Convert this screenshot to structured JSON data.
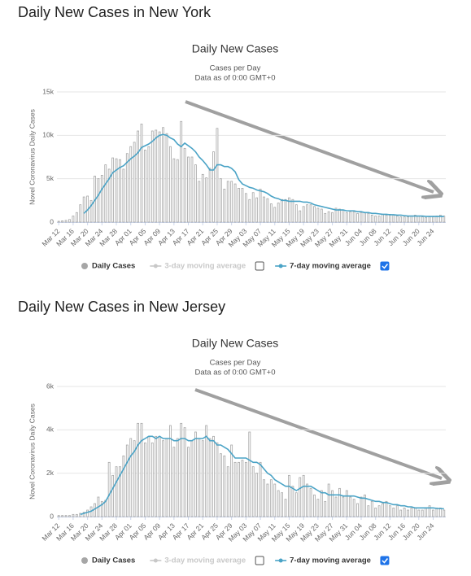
{
  "chart_data": [
    {
      "type": "bar",
      "heading": "Daily New Cases in New York",
      "title": "Daily New Cases",
      "subtitle": "Cases per Day",
      "note": "Data as of 0:00 GMT+0",
      "y_label": "Novel Coronavirus Daily Cases",
      "categories": [
        "Mar 12",
        null,
        null,
        null,
        "Mar 16",
        null,
        null,
        null,
        "Mar 20",
        null,
        null,
        null,
        "Mar 24",
        null,
        null,
        null,
        "Mar 28",
        null,
        null,
        null,
        "Apr 01",
        null,
        null,
        null,
        "Apr 05",
        null,
        null,
        null,
        "Apr 09",
        null,
        null,
        null,
        "Apr 13",
        null,
        null,
        null,
        "Apr 17",
        null,
        null,
        null,
        "Apr 21",
        null,
        null,
        null,
        "Apr 25",
        null,
        null,
        null,
        "Apr 29",
        null,
        null,
        null,
        "May 03",
        null,
        null,
        null,
        "May 07",
        null,
        null,
        null,
        "May 11",
        null,
        null,
        null,
        "May 15",
        null,
        null,
        null,
        "May 19",
        null,
        null,
        null,
        "May 23",
        null,
        null,
        null,
        "May 27",
        null,
        null,
        null,
        "May 31",
        null,
        null,
        null,
        "Jun 04",
        null,
        null,
        null,
        "Jun 08",
        null,
        null,
        null,
        "Jun 12",
        null,
        null,
        null,
        "Jun 16",
        null,
        null,
        null,
        "Jun 20",
        null,
        null,
        null,
        "Jun 24",
        null,
        null,
        null
      ],
      "series": [
        {
          "name": "Daily Cases",
          "color": "#a6a6a6",
          "kind": "bar",
          "values": [
            100,
            150,
            200,
            300,
            700,
            1100,
            2000,
            2900,
            3000,
            2500,
            5300,
            5000,
            5400,
            6600,
            6100,
            7400,
            7300,
            7200,
            6100,
            7900,
            8700,
            9200,
            10500,
            11300,
            8300,
            8700,
            10500,
            10600,
            10400,
            10900,
            10200,
            8700,
            7300,
            7200,
            11600,
            8500,
            7500,
            7500,
            6600,
            4700,
            5500,
            5100,
            6200,
            8100,
            10800,
            5000,
            3800,
            4700,
            4700,
            4400,
            3900,
            3900,
            3300,
            2600,
            3400,
            2800,
            3800,
            2900,
            2700,
            2100,
            1700,
            2200,
            2600,
            2600,
            2800,
            2600,
            2000,
            1300,
            1800,
            2000,
            2000,
            1800,
            1600,
            1500,
            1000,
            1200,
            1100,
            1600,
            1500,
            1400,
            1100,
            1200,
            1200,
            1000,
            1100,
            1100,
            1000,
            800,
            700,
            700,
            900,
            800,
            900,
            800,
            700,
            600,
            600,
            600,
            700,
            800,
            700,
            600,
            500,
            600,
            600,
            700,
            800,
            700
          ]
        },
        {
          "name": "3-day moving average",
          "color": "#c8c8c8",
          "kind": "line",
          "visible": false
        },
        {
          "name": "7-day moving average",
          "color": "#4aa3c6",
          "kind": "line",
          "visible": true,
          "values": [
            null,
            null,
            null,
            null,
            null,
            null,
            null,
            1000,
            1400,
            1900,
            2500,
            3100,
            3800,
            4400,
            5000,
            5700,
            6000,
            6300,
            6500,
            6900,
            7300,
            7600,
            8000,
            8600,
            8800,
            9000,
            9300,
            9700,
            10000,
            10100,
            10000,
            9700,
            9500,
            9000,
            8700,
            9100,
            8800,
            8500,
            8100,
            7500,
            7100,
            6600,
            6000,
            6000,
            6600,
            6600,
            6400,
            6400,
            6200,
            5800,
            4900,
            4400,
            4200,
            4000,
            3900,
            3700,
            3600,
            3500,
            3300,
            3000,
            2800,
            2700,
            2500,
            2500,
            2400,
            2400,
            2400,
            2400,
            2300,
            2300,
            2200,
            2000,
            1900,
            1800,
            1700,
            1600,
            1500,
            1400,
            1400,
            1400,
            1300,
            1300,
            1300,
            1200,
            1200,
            1100,
            1100,
            1000,
            1000,
            950,
            900,
            900,
            850,
            850,
            800,
            800,
            750,
            700,
            700,
            700,
            700,
            700,
            650,
            650,
            650,
            650,
            650,
            650
          ]
        }
      ],
      "ylim": [
        0,
        15000
      ],
      "yticks": [
        0,
        {
          "value": 5000,
          "label": "5k"
        },
        {
          "value": 10000,
          "label": "10k"
        },
        {
          "value": 15000,
          "label": "15k"
        }
      ],
      "grid": true
    },
    {
      "type": "bar",
      "heading": "Daily New Cases in New Jersey",
      "title": "Daily New Cases",
      "subtitle": "Cases per Day",
      "note": "Data as of 0:00 GMT+0",
      "y_label": "Novel Coronavirus Daily Cases",
      "categories": [
        "Mar 12",
        null,
        null,
        null,
        "Mar 16",
        null,
        null,
        null,
        "Mar 20",
        null,
        null,
        null,
        "Mar 24",
        null,
        null,
        null,
        "Mar 28",
        null,
        null,
        null,
        "Apr 01",
        null,
        null,
        null,
        "Apr 05",
        null,
        null,
        null,
        "Apr 09",
        null,
        null,
        null,
        "Apr 13",
        null,
        null,
        null,
        "Apr 17",
        null,
        null,
        null,
        "Apr 21",
        null,
        null,
        null,
        "Apr 25",
        null,
        null,
        null,
        "Apr 29",
        null,
        null,
        null,
        "May 03",
        null,
        null,
        null,
        "May 07",
        null,
        null,
        null,
        "May 11",
        null,
        null,
        null,
        "May 15",
        null,
        null,
        null,
        "May 19",
        null,
        null,
        null,
        "May 23",
        null,
        null,
        null,
        "May 27",
        null,
        null,
        null,
        "May 31",
        null,
        null,
        null,
        "Jun 04",
        null,
        null,
        null,
        "Jun 08",
        null,
        null,
        null,
        "Jun 12",
        null,
        null,
        null,
        "Jun 16",
        null,
        null,
        null,
        "Jun 20",
        null,
        null,
        null,
        "Jun 24",
        null,
        null,
        null
      ],
      "series": [
        {
          "name": "Daily Cases",
          "color": "#a6a6a6",
          "kind": "bar",
          "values": [
            50,
            50,
            50,
            50,
            100,
            100,
            150,
            200,
            300,
            450,
            600,
            900,
            700,
            750,
            2500,
            1900,
            2300,
            2300,
            2800,
            3300,
            3600,
            3500,
            4300,
            4300,
            3400,
            3700,
            3400,
            3700,
            3700,
            3500,
            3600,
            4200,
            3200,
            3600,
            4300,
            4100,
            3200,
            3500,
            3900,
            3600,
            3500,
            4200,
            3600,
            3700,
            3400,
            2900,
            2800,
            2300,
            3300,
            2500,
            2500,
            2600,
            2500,
            3900,
            2300,
            2000,
            2500,
            1700,
            1500,
            1700,
            1500,
            1200,
            1100,
            800,
            1900,
            1400,
            1100,
            1800,
            1900,
            1500,
            1300,
            1000,
            800,
            1200,
            700,
            1500,
            1200,
            900,
            1300,
            900,
            1200,
            900,
            800,
            600,
            900,
            1000,
            500,
            700,
            400,
            500,
            600,
            700,
            500,
            400,
            500,
            300,
            400,
            300,
            400,
            400,
            300,
            300,
            400,
            500,
            300,
            400,
            400,
            300
          ]
        },
        {
          "name": "3-day moving average",
          "color": "#c8c8c8",
          "kind": "line",
          "visible": false
        },
        {
          "name": "7-day moving average",
          "color": "#4aa3c6",
          "kind": "line",
          "visible": true,
          "values": [
            null,
            null,
            null,
            null,
            null,
            null,
            100,
            150,
            200,
            250,
            350,
            450,
            550,
            700,
            1000,
            1300,
            1600,
            1900,
            2200,
            2500,
            2800,
            3000,
            3300,
            3500,
            3600,
            3700,
            3700,
            3600,
            3700,
            3600,
            3600,
            3600,
            3500,
            3500,
            3600,
            3600,
            3500,
            3500,
            3600,
            3600,
            3600,
            3700,
            3500,
            3500,
            3300,
            3300,
            3200,
            3100,
            2900,
            2700,
            2700,
            2700,
            2700,
            2600,
            2500,
            2500,
            2400,
            2200,
            2000,
            1900,
            1700,
            1600,
            1500,
            1400,
            1400,
            1300,
            1200,
            1300,
            1400,
            1400,
            1400,
            1300,
            1200,
            1100,
            1100,
            1000,
            1000,
            1000,
            1000,
            950,
            950,
            950,
            950,
            900,
            850,
            850,
            800,
            750,
            700,
            700,
            650,
            650,
            600,
            550,
            550,
            500,
            500,
            450,
            450,
            400,
            400,
            400,
            400,
            400,
            400,
            380,
            370,
            360
          ]
        }
      ],
      "ylim": [
        0,
        6000
      ],
      "yticks": [
        0,
        {
          "value": 2000,
          "label": "2k"
        },
        {
          "value": 4000,
          "label": "4k"
        },
        {
          "value": 6000,
          "label": "6k"
        }
      ],
      "grid": true
    }
  ]
}
